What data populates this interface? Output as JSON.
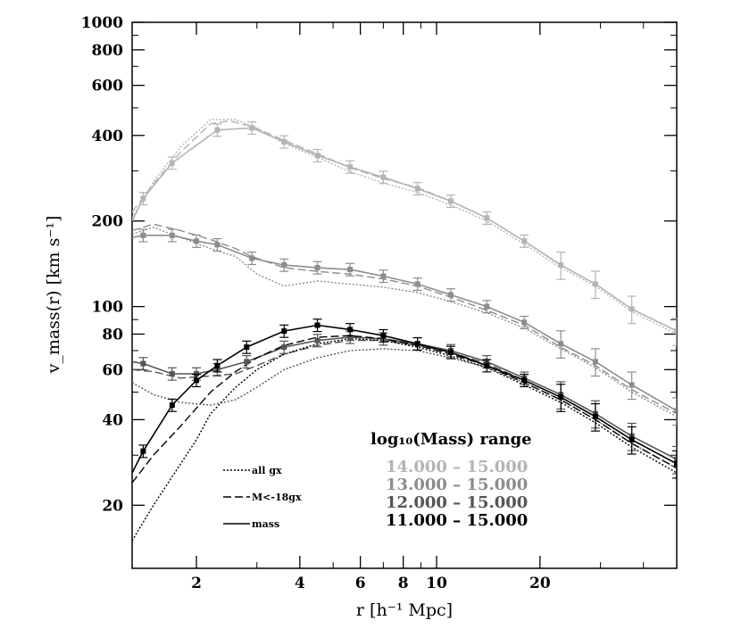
{
  "chart_data": {
    "type": "line",
    "xlabel": "r [h⁻¹ Mpc]",
    "ylabel": "v_mass(r) [km s⁻¹]",
    "xscale": "log",
    "yscale": "log",
    "xlim": [
      1.3,
      50
    ],
    "ylim": [
      12,
      1000
    ],
    "xticks": [
      2,
      4,
      6,
      8,
      10,
      20
    ],
    "xtick_labels": [
      "2",
      "4",
      "6",
      "8",
      "10",
      "20"
    ],
    "yticks": [
      20,
      40,
      60,
      80,
      100,
      200,
      400,
      600,
      800,
      1000
    ],
    "ytick_labels": [
      "20",
      "40",
      "60",
      "80",
      "100",
      "200",
      "400",
      "600",
      "800",
      "1000"
    ],
    "legend_title": "log₁₀(Mass) range",
    "legend_ranges": [
      {
        "label": "14.000  –  15.000",
        "color": "#b4b4b4"
      },
      {
        "label": "13.000  –  15.000",
        "color": "#8c8c8c"
      },
      {
        "label": "12.000  –  15.000",
        "color": "#555555"
      },
      {
        "label": "11.000  –  15.000",
        "color": "#000000"
      }
    ],
    "style_legend": [
      {
        "label": "all gx",
        "dash": "2,2"
      },
      {
        "label": "M<-18gx",
        "dash": "9,4"
      },
      {
        "label": "mass",
        "dash": ""
      }
    ],
    "series": [
      {
        "name": "14.000-15.000 mass",
        "group": 0,
        "style": "mass",
        "x": [
          1.3,
          1.4,
          1.7,
          2.3,
          2.9,
          3.6,
          4.5,
          5.6,
          7.0,
          8.8,
          11,
          14,
          18,
          23,
          29,
          37,
          50
        ],
        "y": [
          200,
          240,
          320,
          418,
          425,
          380,
          340,
          310,
          285,
          260,
          235,
          205,
          170,
          140,
          120,
          98,
          82
        ]
      },
      {
        "name": "14.000-15.000 M<-18gx",
        "group": 0,
        "style": "gx18",
        "x": [
          1.3,
          1.5,
          1.8,
          2.2,
          2.5,
          2.9,
          3.6,
          4.5,
          5.6,
          7.0,
          8.8,
          11,
          14,
          18,
          23,
          29,
          37,
          50
        ],
        "y": [
          215,
          270,
          350,
          440,
          450,
          430,
          385,
          345,
          308,
          282,
          262,
          235,
          205,
          170,
          140,
          120,
          98,
          82
        ]
      },
      {
        "name": "14.000-15.000 all gx",
        "group": 0,
        "style": "allgx",
        "x": [
          1.3,
          1.5,
          1.8,
          2.2,
          2.6,
          3.0,
          3.6,
          4.5,
          5.6,
          7.0,
          8.8,
          11,
          14,
          18,
          23,
          29,
          37,
          50
        ],
        "y": [
          205,
          275,
          365,
          455,
          455,
          425,
          375,
          335,
          298,
          272,
          252,
          228,
          200,
          166,
          137,
          118,
          96,
          80
        ]
      },
      {
        "name": "13.000-15.000 mass",
        "group": 1,
        "style": "mass",
        "x": [
          1.3,
          1.4,
          1.7,
          2.0,
          2.3,
          2.9,
          3.6,
          4.5,
          5.6,
          7.0,
          8.8,
          11,
          14,
          18,
          23,
          29,
          37,
          50
        ],
        "y": [
          175,
          178,
          178,
          170,
          165,
          148,
          140,
          137,
          135,
          128,
          120,
          110,
          100,
          88,
          74,
          64,
          53,
          43
        ]
      },
      {
        "name": "13.000-15.000 M<-18gx",
        "group": 1,
        "style": "gx18",
        "x": [
          1.3,
          1.5,
          1.8,
          2.2,
          2.6,
          2.9,
          3.6,
          4.5,
          5.6,
          7.0,
          8.8,
          11,
          14,
          18,
          23,
          29,
          37,
          50
        ],
        "y": [
          185,
          195,
          185,
          172,
          160,
          150,
          137,
          133,
          130,
          125,
          118,
          108,
          97,
          86,
          72,
          62,
          51,
          42
        ]
      },
      {
        "name": "13.000-15.000 all gx",
        "group": 1,
        "style": "allgx",
        "x": [
          1.3,
          1.5,
          1.8,
          2.2,
          2.6,
          3.0,
          3.6,
          4.5,
          5.6,
          7.0,
          8.8,
          11,
          14,
          18,
          23,
          29,
          37,
          50
        ],
        "y": [
          180,
          190,
          175,
          160,
          150,
          130,
          118,
          123,
          120,
          117,
          112,
          104,
          95,
          84,
          71,
          61,
          50,
          41
        ]
      },
      {
        "name": "12.000-15.000 mass",
        "group": 2,
        "style": "mass",
        "x": [
          1.3,
          1.4,
          1.7,
          2.0,
          2.3,
          2.8,
          3.6,
          4.5,
          5.6,
          7.0,
          8.8,
          11,
          14,
          18,
          23,
          29,
          37,
          50
        ],
        "y": [
          64,
          63,
          58,
          58,
          60,
          64,
          72,
          76,
          78,
          77,
          74,
          70,
          64,
          56,
          49,
          42,
          35,
          29
        ]
      },
      {
        "name": "12.000-15.000 M<-18gx",
        "group": 2,
        "style": "gx18",
        "x": [
          1.3,
          1.5,
          1.8,
          2.2,
          2.6,
          3.0,
          3.6,
          4.5,
          5.6,
          7.0,
          8.8,
          11,
          14,
          18,
          23,
          29,
          37,
          50
        ],
        "y": [
          60,
          59,
          56,
          57,
          58,
          62,
          68,
          73,
          76,
          76,
          73,
          69,
          63,
          55,
          48,
          41,
          34,
          28
        ]
      },
      {
        "name": "12.000-15.000 all gx",
        "group": 2,
        "style": "allgx",
        "x": [
          1.3,
          1.5,
          1.8,
          2.2,
          2.6,
          3.0,
          3.6,
          4.5,
          5.6,
          7.0,
          8.8,
          11,
          14,
          18,
          23,
          29,
          37,
          50
        ],
        "y": [
          54,
          49,
          46,
          45,
          47,
          52,
          60,
          66,
          70,
          71,
          70,
          66,
          61,
          54,
          47,
          40,
          33,
          27
        ]
      },
      {
        "name": "11.000-15.000 mass",
        "group": 3,
        "style": "mass",
        "x": [
          1.3,
          1.4,
          1.7,
          2.0,
          2.3,
          2.8,
          3.6,
          4.5,
          5.6,
          7.0,
          8.8,
          11,
          14,
          18,
          23,
          29,
          37,
          50
        ],
        "y": [
          26,
          31,
          45,
          55,
          62,
          72,
          82,
          86,
          83,
          79,
          74,
          69,
          62,
          55,
          48,
          41,
          34,
          28
        ]
      },
      {
        "name": "11.000-15.000 M<-18gx",
        "group": 3,
        "style": "gx18",
        "x": [
          1.3,
          1.5,
          1.8,
          2.2,
          2.6,
          3.0,
          3.6,
          4.5,
          5.6,
          7.0,
          8.8,
          11,
          14,
          18,
          23,
          29,
          37,
          50
        ],
        "y": [
          24,
          30,
          38,
          50,
          59,
          66,
          73,
          78,
          79,
          77,
          73,
          68,
          62,
          54,
          47,
          40,
          33,
          27
        ]
      },
      {
        "name": "11.000-15.000 all gx",
        "group": 3,
        "style": "allgx",
        "x": [
          1.3,
          1.5,
          1.8,
          2.0,
          2.2,
          2.6,
          3.0,
          3.6,
          4.5,
          5.6,
          7.0,
          8.8,
          11,
          14,
          18,
          23,
          29,
          37,
          50
        ],
        "y": [
          15,
          20,
          28,
          34,
          42,
          52,
          60,
          68,
          74,
          77,
          76,
          72,
          67,
          61,
          53,
          46,
          39,
          32,
          26
        ]
      }
    ]
  }
}
